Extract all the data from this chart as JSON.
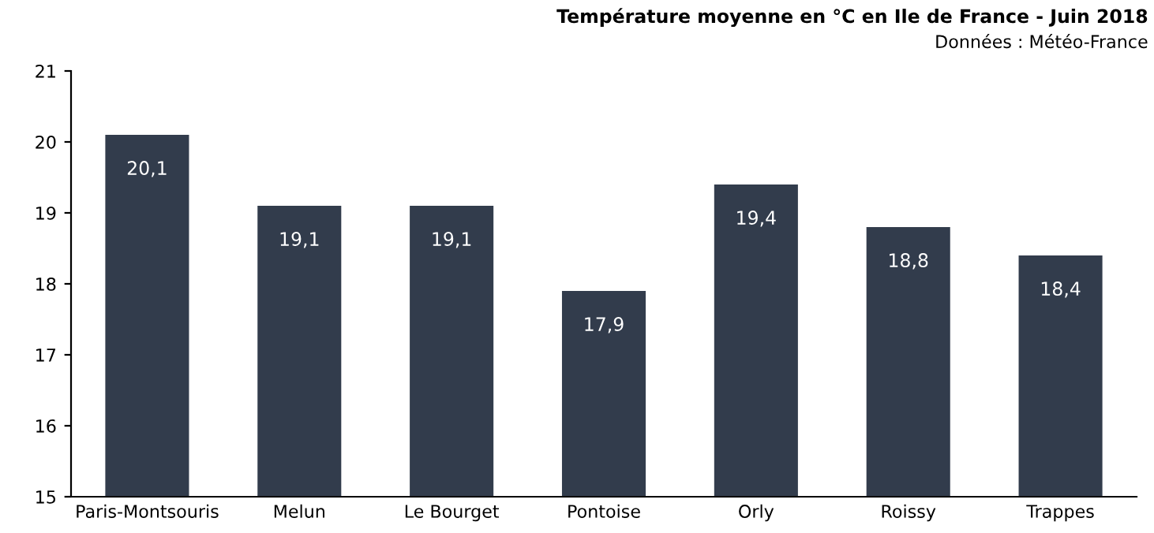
{
  "chart_data": {
    "type": "bar",
    "title": "Température moyenne en °C en Ile de France - Juin 2018",
    "subtitle": "Données : Météo-France",
    "categories": [
      "Paris-Montsouris",
      "Melun",
      "Le Bourget",
      "Pontoise",
      "Orly",
      "Roissy",
      "Trappes"
    ],
    "values": [
      20.1,
      19.1,
      19.1,
      17.9,
      19.4,
      18.8,
      18.4
    ],
    "value_labels": [
      "20,1",
      "19,1",
      "19,1",
      "17,9",
      "19,4",
      "18,8",
      "18,4"
    ],
    "color": "#323c4c",
    "ylim": [
      15,
      21
    ],
    "yticks": [
      15,
      16,
      17,
      18,
      19,
      20,
      21
    ],
    "grid": false
  }
}
